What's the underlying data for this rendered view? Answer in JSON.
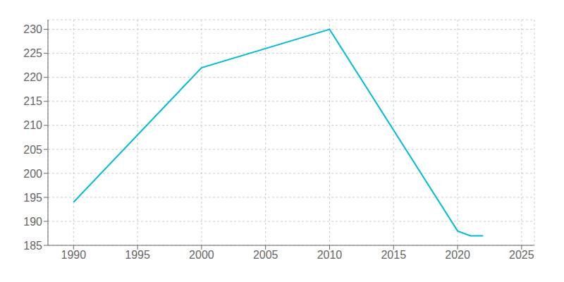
{
  "chart_data": {
    "type": "line",
    "x": [
      1990,
      2000,
      2010,
      2020,
      2021,
      2022
    ],
    "values": [
      194,
      222,
      230,
      188,
      187,
      187
    ],
    "color": "#00BCD4",
    "xlim": [
      1988,
      2026
    ],
    "ylim": [
      185,
      232
    ],
    "xticks": [
      1990,
      1995,
      2000,
      2005,
      2010,
      2015,
      2020,
      2025
    ],
    "yticks": [
      185,
      190,
      195,
      200,
      205,
      210,
      215,
      220,
      225,
      230
    ],
    "grid": true
  }
}
